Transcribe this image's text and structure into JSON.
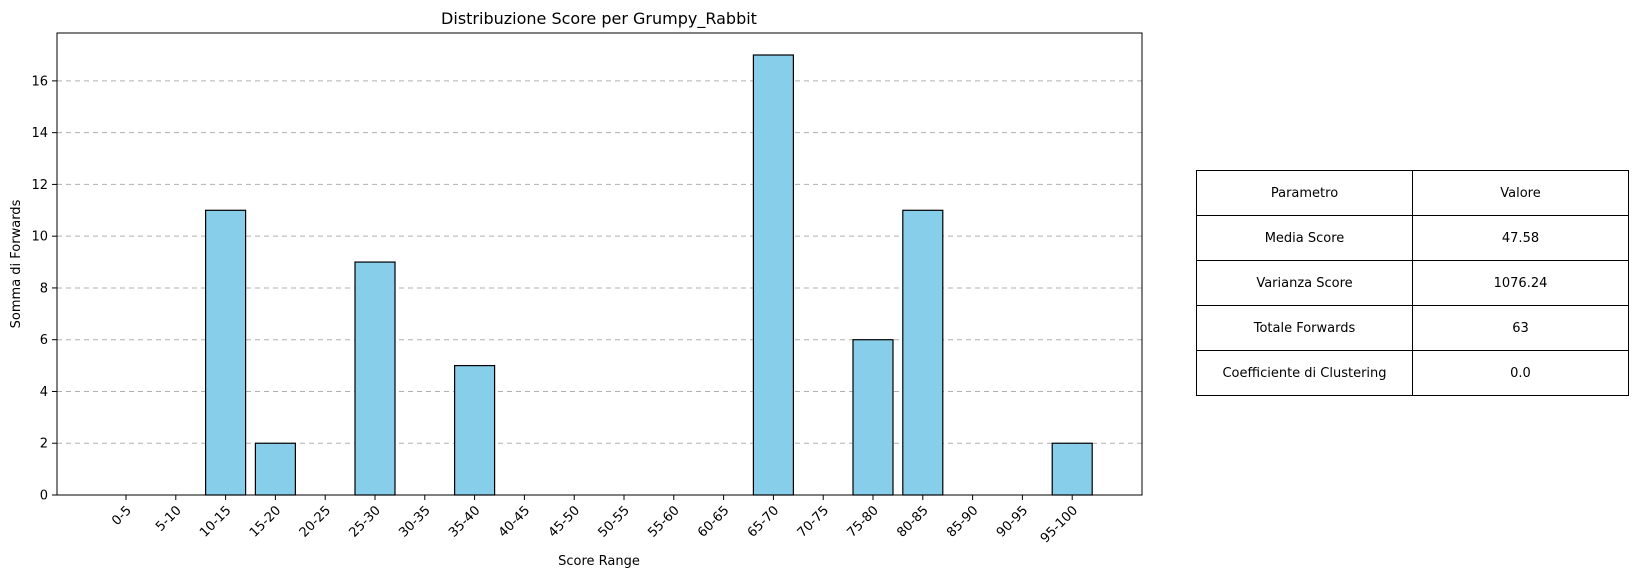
{
  "chart_data": {
    "type": "bar",
    "title": "Distribuzione Score per Grumpy_Rabbit",
    "xlabel": "Score Range",
    "ylabel": "Somma di Forwards",
    "categories": [
      "0-5",
      "5-10",
      "10-15",
      "15-20",
      "20-25",
      "25-30",
      "30-35",
      "35-40",
      "40-45",
      "45-50",
      "50-55",
      "55-60",
      "60-65",
      "65-70",
      "70-75",
      "75-80",
      "80-85",
      "85-90",
      "90-95",
      "95-100"
    ],
    "values": [
      0,
      0,
      11,
      2,
      0,
      9,
      0,
      5,
      0,
      0,
      0,
      0,
      0,
      17,
      0,
      6,
      11,
      0,
      0,
      2
    ],
    "ylim": [
      0,
      17.85
    ],
    "yticks": [
      "0",
      "2",
      "4",
      "6",
      "8",
      "10",
      "12",
      "14",
      "16"
    ],
    "grid": "y dashed",
    "bar_color": "#87ceeb",
    "edge_color": "#000000",
    "grid_color": "#b0b0b0"
  },
  "table": {
    "header": [
      "Parametro",
      "Valore"
    ],
    "rows": [
      [
        "Media Score",
        "47.58"
      ],
      [
        "Varianza Score",
        "1076.24"
      ],
      [
        "Totale Forwards",
        "63"
      ],
      [
        "Coefficiente di Clustering",
        "0.0"
      ]
    ]
  }
}
